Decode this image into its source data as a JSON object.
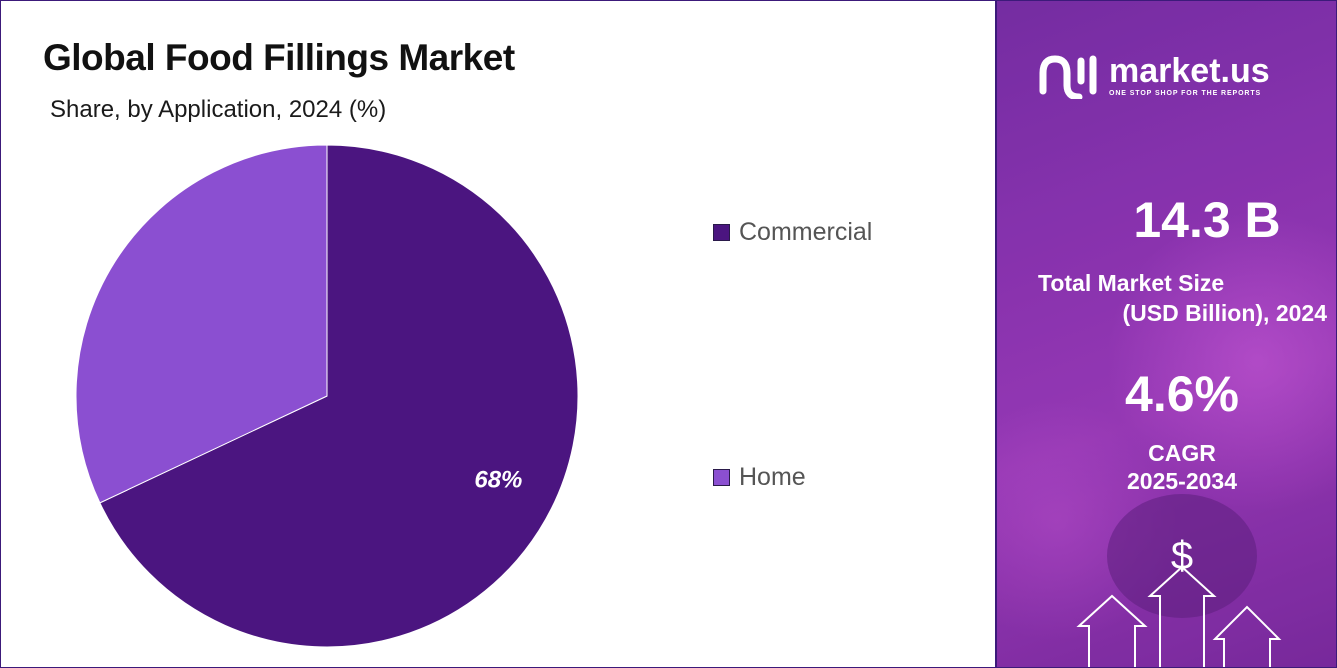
{
  "chart_data": {
    "type": "pie",
    "title": "Global Food Fillings Market",
    "subtitle": "Share, by Application, 2024 (%)",
    "slices": [
      {
        "label": "Commercial",
        "value": 68,
        "color": "#4b1580",
        "data_label": "68%"
      },
      {
        "label": "Home",
        "value": 32,
        "color": "#8b4fd1",
        "data_label": ""
      }
    ],
    "legend": "right"
  },
  "brand": {
    "name": "market.us",
    "tagline": "ONE STOP SHOP FOR THE REPORTS",
    "icon": "market-us-logo-icon"
  },
  "stats": {
    "market_size_value": "14.3 B",
    "market_size_label_line1": "Total Market Size",
    "market_size_label_line2": "(USD Billion), 2024",
    "cagr_value": "4.6%",
    "cagr_label_line1": "CAGR",
    "cagr_label_line2": "2025-2034"
  },
  "decor": {
    "dollar_symbol": "$"
  },
  "colors": {
    "border": "#3c1a7a",
    "panel": "#8e35b5"
  }
}
